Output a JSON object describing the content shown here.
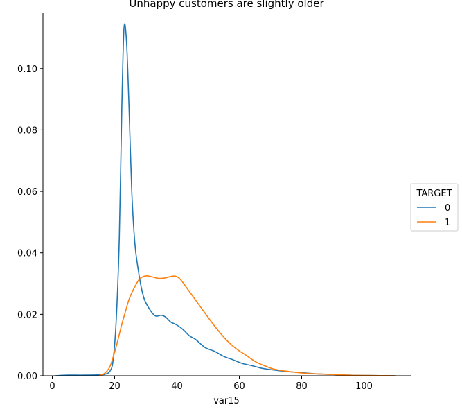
{
  "chart_data": {
    "type": "line",
    "title": "Unhappy customers are slightly older",
    "xlabel": "var15",
    "ylabel": "",
    "xlim": [
      -3,
      115
    ],
    "ylim": [
      0,
      0.118
    ],
    "xticks": [
      0,
      20,
      40,
      60,
      80,
      100
    ],
    "yticks": [
      0.0,
      0.02,
      0.04,
      0.06,
      0.08,
      0.1
    ],
    "ytick_labels": [
      "0.00",
      "0.02",
      "0.04",
      "0.06",
      "0.08",
      "0.10"
    ],
    "grid": false,
    "legend": {
      "title": "TARGET",
      "placement": "right",
      "entries": [
        "0",
        "1"
      ]
    },
    "series": [
      {
        "name": "0",
        "color": "#1f77b4",
        "points": [
          [
            1,
            0.0
          ],
          [
            5,
            0.0002
          ],
          [
            10,
            0.0002
          ],
          [
            15,
            0.0003
          ],
          [
            17,
            0.0005
          ],
          [
            18.5,
            0.0015
          ],
          [
            19.5,
            0.005
          ],
          [
            20.5,
            0.018
          ],
          [
            21.5,
            0.045
          ],
          [
            22.3,
            0.087
          ],
          [
            23,
            0.113
          ],
          [
            23.8,
            0.109
          ],
          [
            24.6,
            0.088
          ],
          [
            25.5,
            0.06
          ],
          [
            26.5,
            0.043
          ],
          [
            27.5,
            0.035
          ],
          [
            28.5,
            0.029
          ],
          [
            29.5,
            0.025
          ],
          [
            31,
            0.022
          ],
          [
            33,
            0.0195
          ],
          [
            35,
            0.0197
          ],
          [
            36.5,
            0.019
          ],
          [
            38,
            0.0175
          ],
          [
            40,
            0.0165
          ],
          [
            42,
            0.015
          ],
          [
            44,
            0.013
          ],
          [
            46,
            0.0118
          ],
          [
            49,
            0.0092
          ],
          [
            52,
            0.008
          ],
          [
            55,
            0.0063
          ],
          [
            58,
            0.0052
          ],
          [
            61,
            0.004
          ],
          [
            64,
            0.0033
          ],
          [
            67,
            0.0025
          ],
          [
            70,
            0.002
          ],
          [
            75,
            0.0014
          ],
          [
            80,
            0.001
          ],
          [
            85,
            0.0006
          ],
          [
            90,
            0.0004
          ],
          [
            95,
            0.0002
          ],
          [
            100,
            0.0001
          ],
          [
            105,
            5e-05
          ],
          [
            110,
            0.0
          ]
        ]
      },
      {
        "name": "1",
        "color": "#ff7f0e",
        "points": [
          [
            15,
            0.0
          ],
          [
            16.5,
            0.0006
          ],
          [
            17.5,
            0.0015
          ],
          [
            18.5,
            0.003
          ],
          [
            19.5,
            0.006
          ],
          [
            20.5,
            0.0095
          ],
          [
            21.5,
            0.0135
          ],
          [
            22.5,
            0.0175
          ],
          [
            23.5,
            0.021
          ],
          [
            24.5,
            0.0245
          ],
          [
            25.5,
            0.027
          ],
          [
            26.5,
            0.029
          ],
          [
            28,
            0.0315
          ],
          [
            30,
            0.0325
          ],
          [
            32,
            0.0322
          ],
          [
            34,
            0.0317
          ],
          [
            36,
            0.0318
          ],
          [
            38,
            0.0323
          ],
          [
            39.5,
            0.0324
          ],
          [
            41,
            0.0315
          ],
          [
            43,
            0.0288
          ],
          [
            45,
            0.026
          ],
          [
            47,
            0.0232
          ],
          [
            50,
            0.019
          ],
          [
            53,
            0.015
          ],
          [
            56,
            0.0115
          ],
          [
            59,
            0.0088
          ],
          [
            62,
            0.0068
          ],
          [
            65,
            0.0047
          ],
          [
            68,
            0.0033
          ],
          [
            71,
            0.0022
          ],
          [
            75,
            0.0015
          ],
          [
            80,
            0.0009
          ],
          [
            85,
            0.0006
          ],
          [
            90,
            0.0004
          ],
          [
            95,
            0.0002
          ],
          [
            100,
            0.0001
          ],
          [
            105,
            5e-05
          ],
          [
            110,
            0.0
          ]
        ]
      }
    ]
  }
}
